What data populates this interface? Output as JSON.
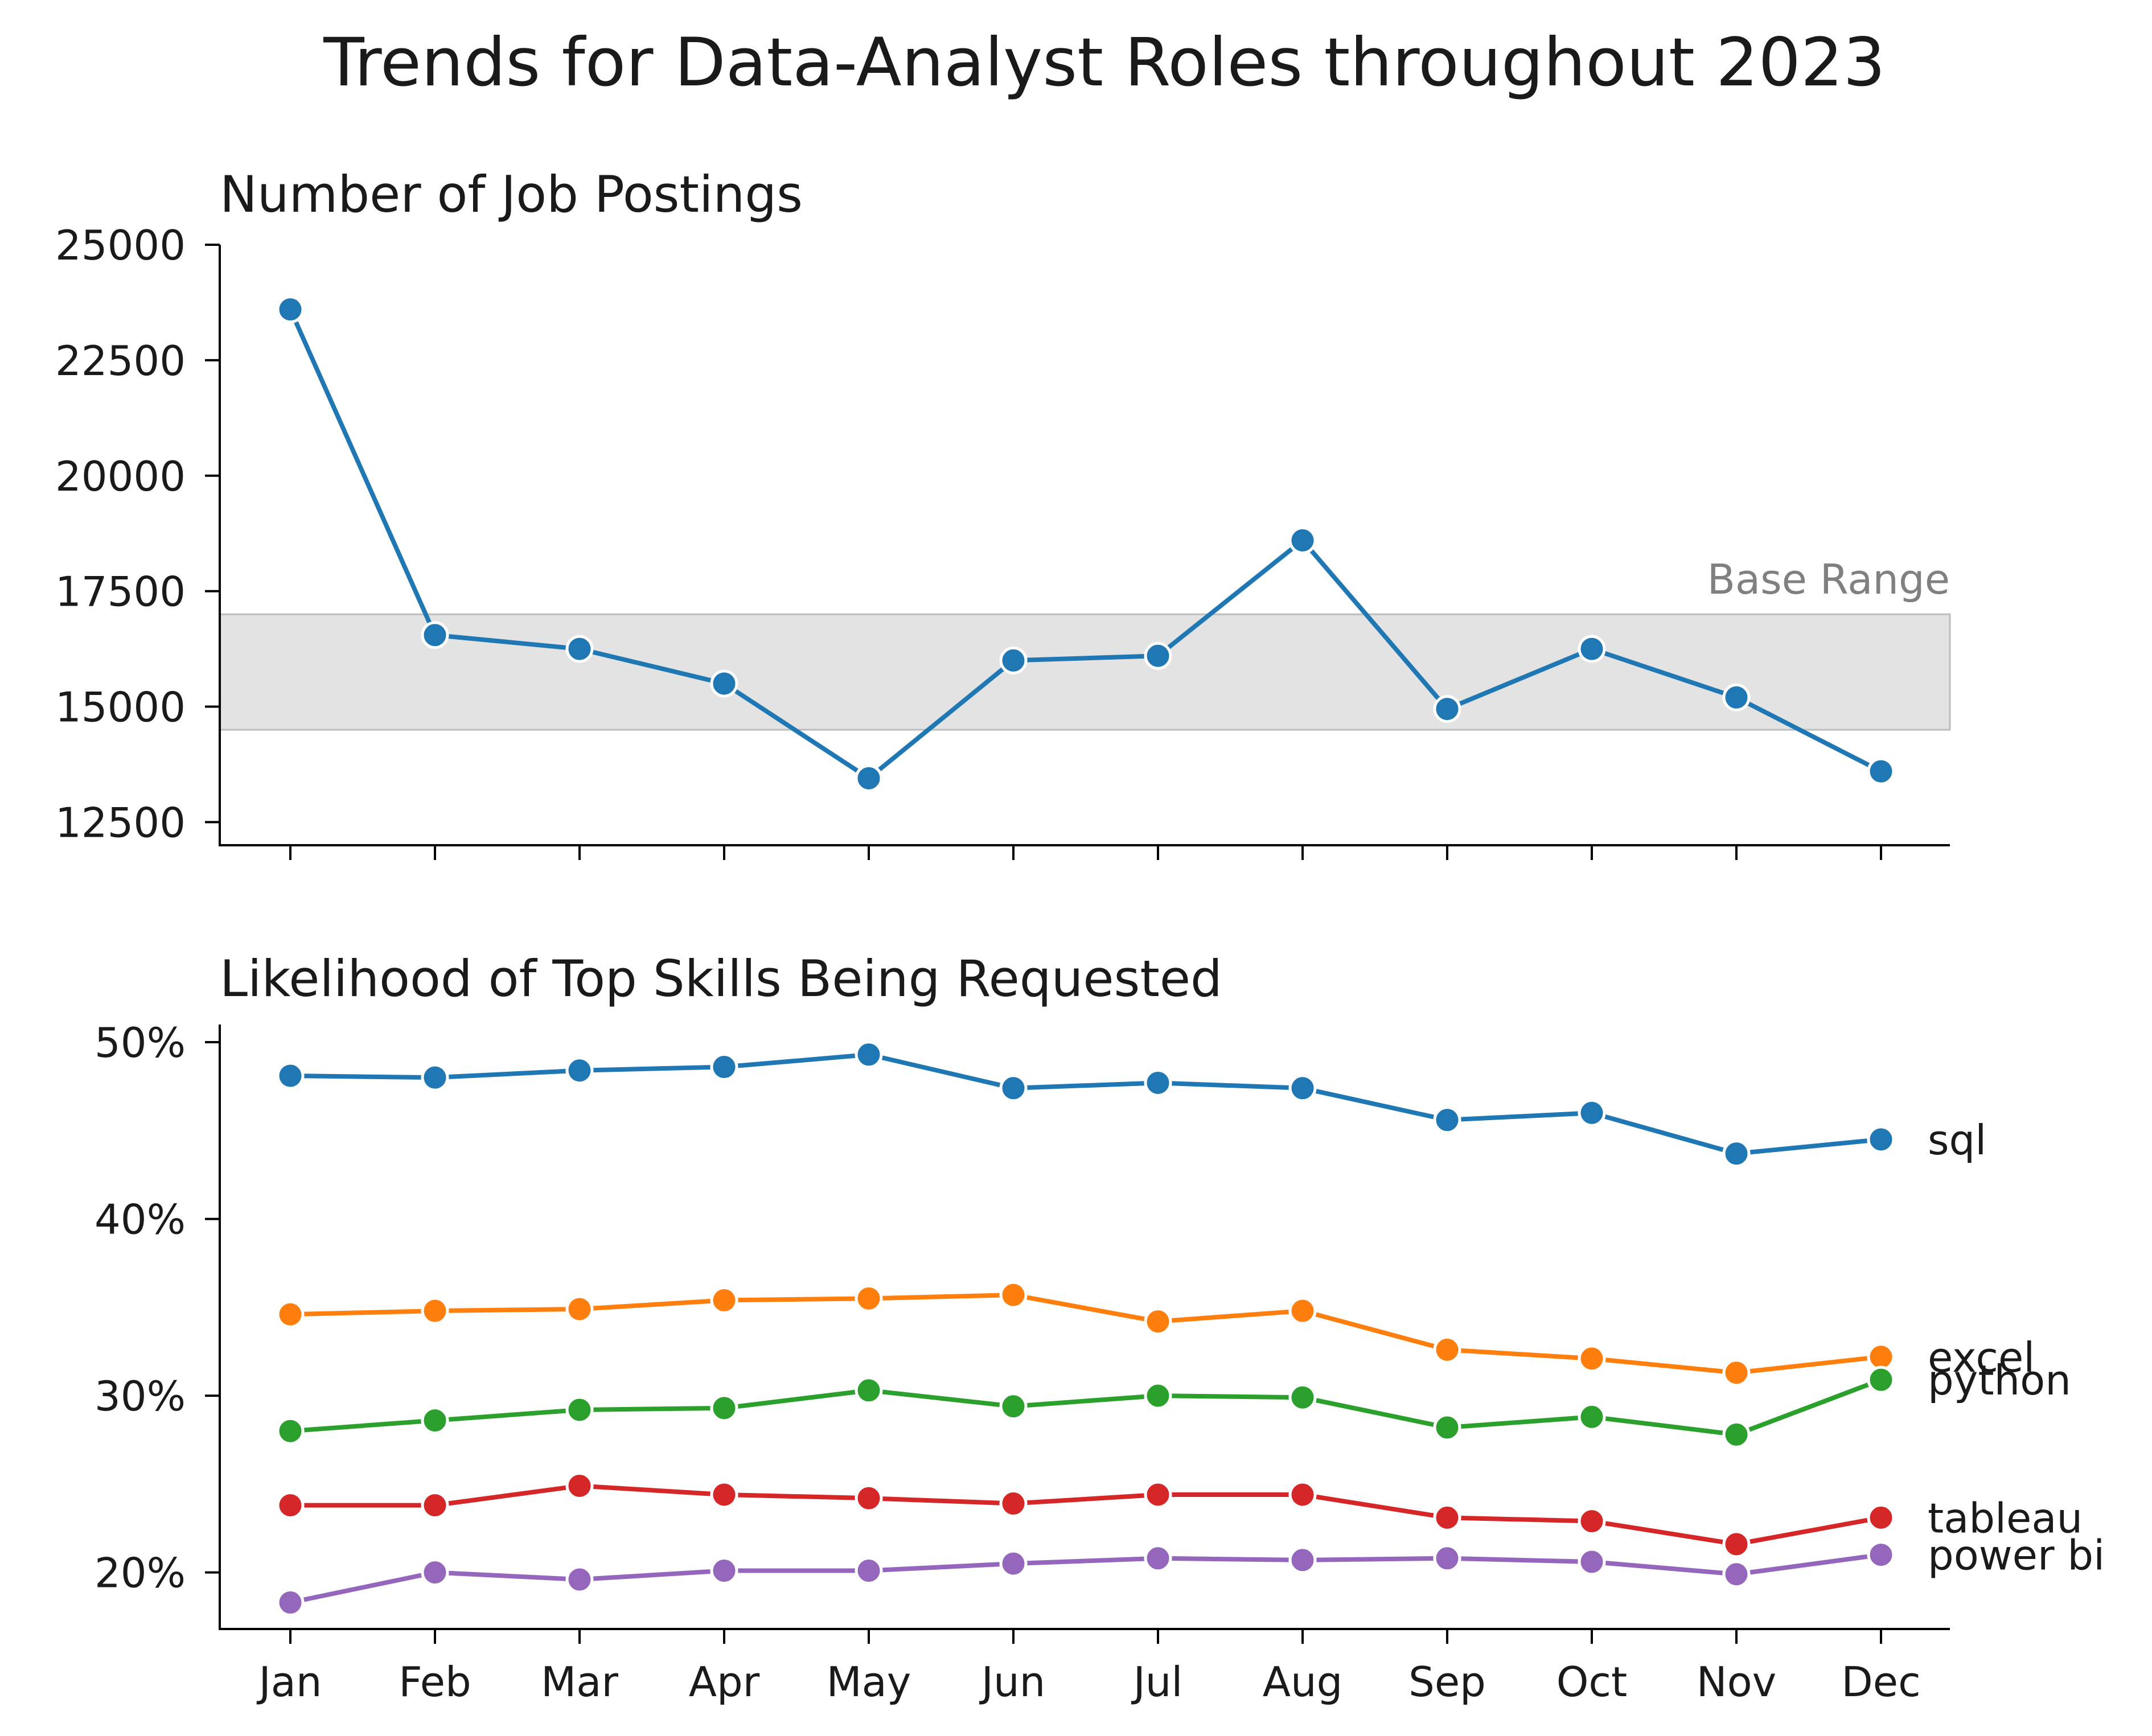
{
  "figure": {
    "suptitle": "Trends for Data-Analyst Roles throughout 2023"
  },
  "chart_data": [
    {
      "type": "line",
      "title": "Number of Job Postings",
      "xlabel": "",
      "ylabel": "",
      "x": [
        "Jan",
        "Feb",
        "Mar",
        "Apr",
        "May",
        "Jun",
        "Jul",
        "Aug",
        "Sep",
        "Oct",
        "Nov",
        "Dec"
      ],
      "ylim": [
        12000,
        25000
      ],
      "yticks": [
        12500,
        15000,
        17500,
        20000,
        22500,
        25000
      ],
      "ytick_labels": [
        "12500",
        "15000",
        "17500",
        "20000",
        "22500",
        "25000"
      ],
      "series": [
        {
          "values": [
            23600,
            16550,
            16250,
            15500,
            13450,
            16000,
            16100,
            18600,
            14950,
            16250,
            15200,
            13600
          ],
          "color": "#1f77b4"
        }
      ],
      "band": {
        "label": "Base Range",
        "from": 14500,
        "to": 17000,
        "color": "#cccccc"
      },
      "grid": false,
      "show_xtick_labels": false
    },
    {
      "type": "line",
      "title": "Likelihood of Top Skills Being Requested",
      "xlabel": "",
      "ylabel": "",
      "x": [
        "Jan",
        "Feb",
        "Mar",
        "Apr",
        "May",
        "Jun",
        "Jul",
        "Aug",
        "Sep",
        "Oct",
        "Nov",
        "Dec"
      ],
      "ylim": [
        16.8,
        51.0
      ],
      "yticks": [
        20,
        30,
        40,
        50
      ],
      "ytick_labels": [
        "20%",
        "30%",
        "40%",
        "50%"
      ],
      "series": [
        {
          "name": "sql",
          "color": "#1f77b4",
          "values": [
            48.1,
            48.0,
            48.4,
            48.6,
            49.3,
            47.4,
            47.7,
            47.4,
            45.6,
            46.0,
            43.7,
            44.5
          ]
        },
        {
          "name": "excel",
          "color": "#ff7f0e",
          "values": [
            34.6,
            34.8,
            34.9,
            35.4,
            35.5,
            35.7,
            34.2,
            34.8,
            32.6,
            32.1,
            31.3,
            32.2
          ]
        },
        {
          "name": "python",
          "color": "#2ca02c",
          "values": [
            28.0,
            28.6,
            29.2,
            29.3,
            30.3,
            29.4,
            30.0,
            29.9,
            28.2,
            28.8,
            27.8,
            30.9
          ]
        },
        {
          "name": "tableau",
          "color": "#d62728",
          "values": [
            23.8,
            23.8,
            24.9,
            24.4,
            24.2,
            23.9,
            24.4,
            24.4,
            23.1,
            22.9,
            21.6,
            23.1
          ]
        },
        {
          "name": "power bi",
          "color": "#9467bd",
          "values": [
            18.3,
            20.0,
            19.6,
            20.1,
            20.1,
            20.5,
            20.8,
            20.7,
            20.8,
            20.6,
            19.9,
            21.0
          ]
        }
      ],
      "grid": false,
      "legend": "inline labels at right end of each line"
    }
  ]
}
